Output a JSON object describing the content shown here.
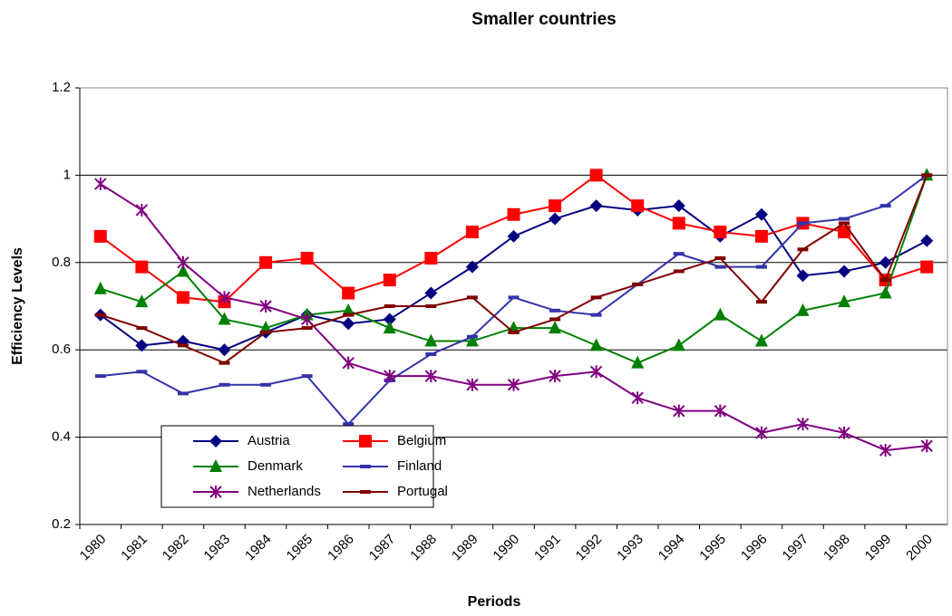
{
  "chart_data": {
    "type": "line",
    "title": "Smaller countries",
    "x_label": "Periods",
    "y_label": "Efficiency Levels",
    "categories": [
      "1980",
      "1981",
      "1982",
      "1983",
      "1984",
      "1985",
      "1986",
      "1987",
      "1988",
      "1989",
      "1990",
      "1991",
      "1992",
      "1993",
      "1994",
      "1995",
      "1996",
      "1997",
      "1998",
      "1999",
      "2000"
    ],
    "ylim": [
      0.2,
      1.2
    ],
    "yticks": [
      0.2,
      0.4,
      0.6,
      0.8,
      1,
      1.2
    ],
    "grid": true,
    "legend_position": "lower left",
    "series": [
      {
        "name": "Austria",
        "color": "#000080",
        "marker": "diamond",
        "values": [
          0.68,
          0.61,
          0.62,
          0.6,
          0.64,
          0.68,
          0.66,
          0.67,
          0.73,
          0.79,
          0.86,
          0.9,
          0.93,
          0.92,
          0.93,
          0.86,
          0.91,
          0.77,
          0.78,
          0.8,
          0.85
        ]
      },
      {
        "name": "Belgium",
        "color": "#ff0000",
        "marker": "square",
        "values": [
          0.86,
          0.79,
          0.72,
          0.71,
          0.8,
          0.81,
          0.73,
          0.76,
          0.81,
          0.87,
          0.91,
          0.93,
          1.0,
          0.93,
          0.89,
          0.87,
          0.86,
          0.89,
          0.87,
          0.76,
          0.79
        ]
      },
      {
        "name": "Denmark",
        "color": "#008000",
        "marker": "triangle",
        "values": [
          0.74,
          0.71,
          0.78,
          0.67,
          0.65,
          0.68,
          0.69,
          0.65,
          0.62,
          0.62,
          0.65,
          0.65,
          0.61,
          0.57,
          0.61,
          0.68,
          0.62,
          0.69,
          0.71,
          0.73,
          1.0
        ]
      },
      {
        "name": "Finland",
        "color": "#3333aa",
        "marker": "dash",
        "values": [
          0.54,
          0.55,
          0.5,
          0.52,
          0.52,
          0.54,
          0.43,
          0.53,
          0.59,
          0.63,
          0.72,
          0.69,
          0.68,
          0.75,
          0.82,
          0.79,
          0.79,
          0.89,
          0.9,
          0.93,
          1.0
        ]
      },
      {
        "name": "Netherlands",
        "color": "#800080",
        "marker": "star",
        "values": [
          0.98,
          0.92,
          0.8,
          0.72,
          0.7,
          0.67,
          0.57,
          0.54,
          0.54,
          0.52,
          0.52,
          0.54,
          0.55,
          0.49,
          0.46,
          0.46,
          0.41,
          0.43,
          0.41,
          0.37,
          0.38
        ]
      },
      {
        "name": "Portugal",
        "color": "#800000",
        "marker": "dash",
        "values": [
          0.68,
          0.65,
          0.61,
          0.57,
          0.64,
          0.65,
          0.68,
          0.7,
          0.7,
          0.72,
          0.64,
          0.67,
          0.72,
          0.75,
          0.78,
          0.81,
          0.71,
          0.83,
          0.89,
          0.76,
          1.0
        ]
      }
    ]
  }
}
